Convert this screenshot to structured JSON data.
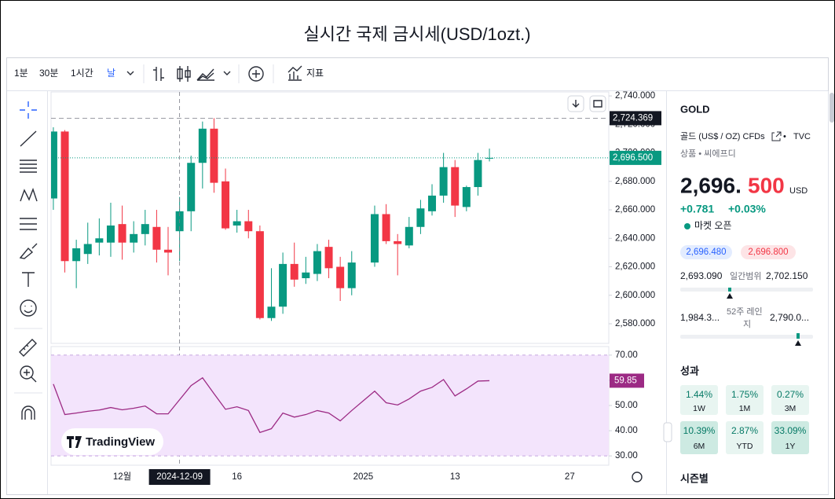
{
  "header": {
    "title": "실시간 국제 금시세(USD/1ozt.)"
  },
  "toolbar": {
    "intervals": [
      "1분",
      "30분",
      "1시간",
      "날"
    ],
    "indicators": "지표"
  },
  "chart_data": [
    {
      "type": "candlestick",
      "x": [
        0,
        1,
        2,
        3,
        4,
        5,
        6,
        7,
        8,
        9,
        10,
        11,
        12,
        13,
        14,
        15,
        16,
        17,
        18,
        19,
        20,
        21,
        22,
        23,
        24,
        25,
        26,
        28,
        29,
        30,
        31,
        32,
        33,
        34,
        35,
        36,
        37,
        38
      ],
      "open": [
        2668,
        2715,
        2624,
        2629,
        2637,
        2637,
        2650,
        2637,
        2643,
        2648,
        2632,
        2645,
        2659,
        2693,
        2717,
        2680,
        2649,
        2652,
        2645,
        2584,
        2592,
        2622,
        2612,
        2615,
        2634,
        2620,
        2605,
        2623,
        2657,
        2638,
        2635,
        2648,
        2659,
        2670,
        2690,
        2662,
        2676,
        2696
      ],
      "high": [
        2718,
        2716,
        2639,
        2651,
        2654,
        2665,
        2663,
        2652,
        2660,
        2660,
        2648,
        2669,
        2698,
        2722,
        2724.369,
        2689,
        2660,
        2660,
        2649,
        2619,
        2630,
        2637,
        2627,
        2636,
        2639,
        2627,
        2631,
        2663,
        2664,
        2643,
        2655,
        2667,
        2678,
        2700,
        2695,
        2677,
        2700,
        2703
      ],
      "low": [
        2660,
        2616,
        2605,
        2622,
        2628,
        2627,
        2625,
        2630,
        2635,
        2623,
        2614,
        2624,
        2645,
        2675,
        2672,
        2646,
        2644,
        2640,
        2583,
        2582,
        2587,
        2606,
        2608,
        2610,
        2612,
        2596,
        2600,
        2620,
        2636,
        2614,
        2633,
        2643,
        2656,
        2665,
        2655,
        2659,
        2670,
        2694
      ],
      "close": [
        2715,
        2624,
        2633,
        2636,
        2640,
        2649,
        2637,
        2643,
        2650,
        2632,
        2630,
        2659,
        2693,
        2717,
        2679,
        2647,
        2652,
        2645,
        2584,
        2592,
        2622,
        2611,
        2616,
        2631,
        2619,
        2605,
        2623,
        2657,
        2638,
        2636,
        2648,
        2661,
        2670,
        2690,
        2663,
        2676,
        2695,
        2696.5
      ],
      "up_color": "#089981",
      "down_color": "#f23645",
      "xlim": [
        -0.2,
        48.4
      ],
      "xticks": [
        {
          "value": 6,
          "label": "12월"
        },
        {
          "value": 16,
          "label": "16"
        },
        {
          "value": 27,
          "label": "2025"
        },
        {
          "value": 35,
          "label": "13"
        },
        {
          "value": 45,
          "label": "27"
        }
      ],
      "crosshair": {
        "value": 11,
        "label": "2024-12-09"
      },
      "ylim": [
        2566.2,
        2742.8
      ],
      "yticks": [
        {
          "value": 2580,
          "label": "2,580.000"
        },
        {
          "value": 2600,
          "label": "2,600.000"
        },
        {
          "value": 2620,
          "label": "2,620.000"
        },
        {
          "value": 2640,
          "label": "2,640.000"
        },
        {
          "value": 2660,
          "label": "2,660.000"
        },
        {
          "value": 2680,
          "label": "2,680.000"
        },
        {
          "value": 2700,
          "label": "2,700.000"
        },
        {
          "value": 2720,
          "label": "2,720.000"
        },
        {
          "value": 2740,
          "label": "2,740.000"
        }
      ],
      "high_line": {
        "value": 2724.369,
        "label": "2,724.369"
      },
      "current": {
        "value": 2696.5,
        "label": "2,696.500"
      },
      "grid": false
    },
    {
      "type": "line",
      "x": [
        0,
        1,
        2,
        3,
        4,
        5,
        6,
        7,
        8,
        9,
        10,
        11,
        12,
        13,
        14,
        15,
        16,
        17,
        18,
        19,
        20,
        21,
        22,
        23,
        24,
        25,
        26,
        28,
        29,
        30,
        31,
        32,
        33,
        34,
        35,
        36,
        37,
        38
      ],
      "values": [
        58.5,
        46.4,
        47,
        47.7,
        48.2,
        49.2,
        48.3,
        48.9,
        49.8,
        46.7,
        46.7,
        52.3,
        57.9,
        61,
        54.7,
        48.5,
        49.5,
        48,
        39.3,
        40.8,
        47,
        45.4,
        46.4,
        48,
        47,
        43.9,
        48,
        55.7,
        51.1,
        50.2,
        52.6,
        55.7,
        57.2,
        60.3,
        53.8,
        56.6,
        59.7,
        59.85
      ],
      "color": "#9c2a84",
      "xlim": [
        -0.2,
        48.4
      ],
      "ylim": [
        26.3,
        73.4
      ],
      "yticks": [
        {
          "value": 30,
          "label": "30.00"
        },
        {
          "value": 40,
          "label": "40.00"
        },
        {
          "value": 50,
          "label": "50.00"
        },
        {
          "value": 60,
          "label": "60.00"
        },
        {
          "value": 70,
          "label": "70.00"
        }
      ],
      "band": [
        30,
        70
      ],
      "band_color": "#f3e4fc",
      "current": {
        "value": 59.85,
        "label": "59.85"
      },
      "grid": false
    }
  ],
  "watermark": "TradingView",
  "panel": {
    "symbol": "GOLD",
    "description": "골드 (US$ / OZ) CFDs",
    "exchange": "TVC",
    "category": "상품 • 씨에프디",
    "price_main": "2,696.",
    "price_fraction": "500",
    "currency": "USD",
    "change": "+0.781",
    "change_percent": "+0.03%",
    "market_status": "마켓 오픈",
    "bid": "2,696.480",
    "ask": "2,696.800",
    "day_low": "2,693.090",
    "day_range_label": "일간범위",
    "day_high": "2,702.150",
    "week52_low": "1,984.3...",
    "week52_label": [
      "52주 레인",
      "지"
    ],
    "week52_high": "2,790.0...",
    "performance_title": "성과",
    "performance": [
      {
        "value": "1.44%",
        "period": "1W"
      },
      {
        "value": "1.75%",
        "period": "1M"
      },
      {
        "value": "0.27%",
        "period": "3M"
      },
      {
        "value": "10.39%",
        "period": "6M"
      },
      {
        "value": "2.87%",
        "period": "YTD"
      },
      {
        "value": "33.09%",
        "period": "1Y"
      }
    ],
    "seasonal_title": "시즌별"
  }
}
